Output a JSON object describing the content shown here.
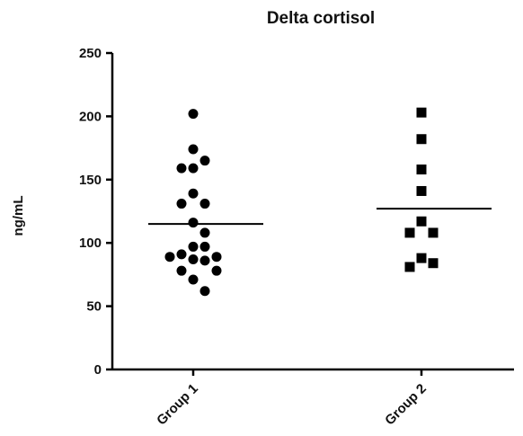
{
  "chart_data": {
    "type": "scatter",
    "title": "Delta cortisol",
    "ylabel": "ng/mL",
    "xlabel": "",
    "ylim": [
      0,
      250
    ],
    "yticks": [
      0,
      50,
      100,
      150,
      200,
      250
    ],
    "categories": [
      "Group 1",
      "Group 2"
    ],
    "grid": false,
    "legend": "none",
    "series": [
      {
        "category": "Group 1",
        "marker": "circle",
        "mean": 115,
        "values": [
          202,
          174,
          165,
          159,
          159,
          139,
          131,
          131,
          116,
          108,
          97,
          97,
          91,
          89,
          89,
          87,
          86,
          78,
          78,
          71,
          62
        ]
      },
      {
        "category": "Group 2",
        "marker": "square",
        "mean": 127,
        "values": [
          203,
          182,
          158,
          141,
          117,
          108,
          108,
          88,
          84,
          81
        ]
      }
    ]
  }
}
